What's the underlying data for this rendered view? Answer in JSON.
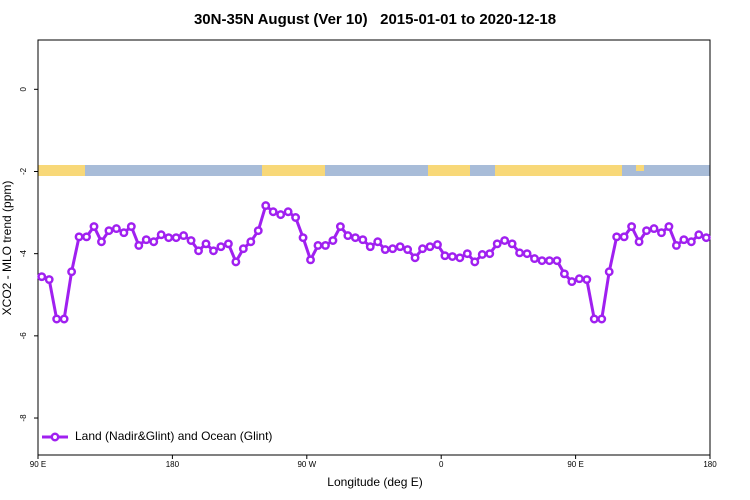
{
  "chart_data": {
    "type": "line",
    "title": "30N-35N August (Ver 10)   2015-01-01 to 2020-12-18",
    "xlabel": "Longitude (deg E)",
    "ylabel": "XCO2 - MLO trend (ppm)",
    "xlim": [
      90,
      540
    ],
    "xticks": [
      {
        "value": 90,
        "label": "90 E"
      },
      {
        "value": 180,
        "label": "180"
      },
      {
        "value": 270,
        "label": "90 W"
      },
      {
        "value": 360,
        "label": "0"
      },
      {
        "value": 450,
        "label": "90 E"
      },
      {
        "value": 540,
        "label": "180"
      }
    ],
    "ylim": [
      -8.9,
      1.2
    ],
    "yticks": [
      0,
      -2,
      -4,
      -6,
      -8
    ],
    "legend": "bottom-left",
    "x": [
      92.5,
      97.5,
      102.5,
      107.5,
      112.5,
      117.5,
      122.5,
      127.5,
      132.5,
      137.5,
      142.5,
      147.5,
      152.5,
      157.5,
      162.5,
      167.5,
      172.5,
      177.5,
      182.5,
      187.5,
      192.5,
      197.5,
      202.5,
      207.5,
      212.5,
      217.5,
      222.5,
      227.5,
      232.5,
      237.5,
      242.5,
      247.5,
      252.5,
      257.5,
      262.5,
      267.5,
      272.5,
      277.5,
      282.5,
      287.5,
      292.5,
      297.5,
      302.5,
      307.5,
      312.5,
      317.5,
      322.5,
      327.5,
      332.5,
      337.5,
      342.5,
      347.5,
      352.5,
      357.5,
      362.5,
      367.5,
      372.5,
      377.5,
      382.5,
      387.5,
      392.5,
      397.5,
      402.5,
      407.5,
      412.5,
      417.5,
      422.5,
      427.5,
      432.5,
      437.5,
      442.5,
      447.5,
      452.5,
      457.5,
      462.5,
      467.5,
      472.5,
      477.5,
      482.5,
      487.5,
      492.5,
      497.5,
      502.5,
      507.5,
      512.5,
      517.5,
      522.5,
      527.5,
      532.5,
      537.5
    ],
    "series": [
      {
        "name": "Land (Nadir&Glint) and Ocean (Glint)",
        "color": "#a020f0",
        "values": [
          -4.56,
          -4.63,
          -5.59,
          -5.59,
          -4.44,
          -3.59,
          -3.59,
          -3.34,
          -3.71,
          -3.44,
          -3.39,
          -3.49,
          -3.34,
          -3.8,
          -3.66,
          -3.71,
          -3.54,
          -3.61,
          -3.61,
          -3.56,
          -3.68,
          -3.93,
          -3.76,
          -3.93,
          -3.83,
          -3.76,
          -4.2,
          -3.88,
          -3.71,
          -3.44,
          -2.83,
          -2.98,
          -3.05,
          -2.98,
          -3.12,
          -3.61,
          -4.15,
          -3.8,
          -3.8,
          -3.68,
          -3.34,
          -3.56,
          -3.61,
          -3.66,
          -3.83,
          -3.71,
          -3.9,
          -3.88,
          -3.83,
          -3.9,
          -4.1,
          -3.88,
          -3.83,
          -3.78,
          -4.05,
          -4.07,
          -4.1,
          -4.0,
          -4.2,
          -4.02,
          -4.0,
          -3.76,
          -3.68,
          -3.76,
          -3.98,
          -4.0,
          -4.12,
          -4.17,
          -4.17,
          -4.17,
          -4.49,
          -4.68,
          -4.61,
          -4.63,
          -5.59,
          -5.59,
          -4.44,
          -3.59,
          -3.59,
          -3.34,
          -3.71,
          -3.44,
          -3.39,
          -3.49,
          -3.34,
          -3.8,
          -3.66,
          -3.71,
          -3.54,
          -3.61
        ]
      }
    ]
  }
}
